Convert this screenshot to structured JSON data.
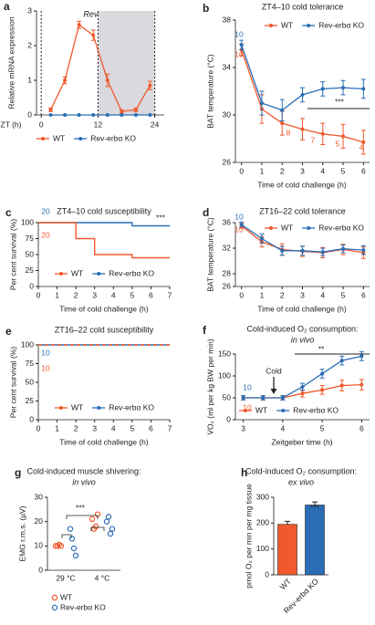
{
  "chart_data": [
    {
      "type": "line",
      "label": "a",
      "title": "Rev-erbα",
      "x_label": "ZT (h)",
      "y_label": "Relative mRNA expression",
      "xlim": [
        -1,
        26
      ],
      "xticks": [
        0,
        12,
        24
      ],
      "ylim": [
        0,
        3
      ],
      "yticks": [
        0,
        1,
        2,
        3
      ],
      "shade": [
        12,
        24
      ],
      "legend": "bottom",
      "x": [
        2,
        5,
        8,
        11,
        14,
        17,
        20,
        23
      ],
      "series": [
        {
          "name": "WT",
          "color": "#f0592b",
          "values": [
            0.15,
            1.0,
            2.6,
            2.3,
            1.0,
            0.1,
            0.15,
            0.85
          ],
          "errors": [
            0.05,
            0.1,
            0.1,
            0.15,
            0.18,
            0.05,
            0.05,
            0.12
          ]
        },
        {
          "name": "Rev-erbα KO",
          "color": "#2a6db5",
          "values": [
            0,
            0,
            0,
            0,
            0,
            0,
            0,
            0
          ],
          "errors": [
            0,
            0,
            0,
            0,
            0,
            0,
            0,
            0
          ]
        }
      ]
    },
    {
      "type": "line",
      "label": "b",
      "title": "ZT4–10 cold tolerance",
      "x_label": "Time of cold challenge (h)",
      "y_label": "BAT temperature (°C)",
      "xlim": [
        -0.3,
        6.3
      ],
      "xticks": [
        0,
        1,
        2,
        3,
        4,
        5,
        6
      ],
      "ylim": [
        26,
        38
      ],
      "yticks": [
        26,
        30,
        34,
        38
      ],
      "legend": "top",
      "x": [
        0,
        1,
        2,
        3,
        4,
        5,
        6
      ],
      "series": [
        {
          "name": "WT",
          "color": "#f0592b",
          "values": [
            35.5,
            30.5,
            29.3,
            28.8,
            28.4,
            28.2,
            27.7
          ],
          "errors": [
            0.5,
            1.2,
            1.0,
            0.9,
            0.9,
            1.0,
            1.0
          ]
        },
        {
          "name": "Rev-erbα KO",
          "color": "#2a6db5",
          "values": [
            35.9,
            31.0,
            30.4,
            31.7,
            32.2,
            32.3,
            32.2
          ],
          "errors": [
            0.4,
            1.0,
            0.9,
            0.6,
            0.6,
            0.6,
            0.8
          ]
        }
      ],
      "annotations": [
        {
          "text": "10",
          "color": "#2a6db5"
        },
        {
          "text": "10",
          "color": "#f0592b"
        },
        {
          "text": "8",
          "color": "#f0592b"
        },
        {
          "text": "7",
          "color": "#f0592b"
        },
        {
          "text": "5",
          "color": "#f0592b"
        },
        {
          "text": "4",
          "color": "#f0592b"
        },
        {
          "text": "***",
          "color": "#222222"
        }
      ]
    },
    {
      "type": "step",
      "label": "c",
      "title": "ZT4–10 cold susceptibility",
      "x_label": "Time of cold challenge (h)",
      "y_label": "Per cent survival (%)",
      "xlim": [
        0,
        7
      ],
      "xticks": [
        0,
        1,
        2,
        3,
        4,
        5,
        6,
        7
      ],
      "ylim": [
        0,
        100
      ],
      "yticks": [
        0,
        25,
        50,
        75,
        100
      ],
      "legend": "bottom",
      "series": [
        {
          "name": "WT",
          "color": "#f0592b",
          "x": [
            0,
            2,
            3,
            5,
            7
          ],
          "values": [
            100,
            75,
            50,
            45,
            45
          ]
        },
        {
          "name": "Rev-erbα KO",
          "color": "#2a6db5",
          "x": [
            0,
            5,
            7
          ],
          "values": [
            100,
            95,
            95
          ]
        }
      ],
      "annotations": [
        {
          "text": "20",
          "color": "#2a6db5"
        },
        {
          "text": "20",
          "color": "#f0592b"
        },
        {
          "text": "***",
          "color": "#222222"
        }
      ]
    },
    {
      "type": "line",
      "label": "d",
      "title": "ZT16–22 cold tolerance",
      "x_label": "Time of cold challenge (h)",
      "y_label": "BAT temperature (°C)",
      "xlim": [
        -0.3,
        6.3
      ],
      "xticks": [
        0,
        1,
        2,
        3,
        4,
        5,
        6
      ],
      "ylim": [
        26,
        36
      ],
      "yticks": [
        26,
        28,
        32,
        36
      ],
      "legend": "top",
      "x": [
        0,
        1,
        2,
        3,
        4,
        5,
        6
      ],
      "series": [
        {
          "name": "WT",
          "color": "#f0592b",
          "values": [
            35.5,
            33.0,
            31.8,
            31.5,
            31.3,
            31.8,
            31.3
          ],
          "errors": [
            0.4,
            0.8,
            0.9,
            0.8,
            0.8,
            0.8,
            0.9
          ]
        },
        {
          "name": "Rev-erbα KO",
          "color": "#2a6db5",
          "values": [
            35.7,
            33.5,
            31.6,
            31.6,
            31.4,
            31.9,
            31.7
          ],
          "errors": [
            0.4,
            0.7,
            0.7,
            0.7,
            0.6,
            0.6,
            0.7
          ]
        }
      ],
      "annotations": [
        {
          "text": "10",
          "color": "#2a6db5"
        },
        {
          "text": "10",
          "color": "#f0592b"
        }
      ]
    },
    {
      "type": "step",
      "label": "e",
      "title": "ZT16–22 cold susceptibility",
      "x_label": "Time of cold challenge (h)",
      "y_label": "Per cent survival (%)",
      "xlim": [
        0,
        7
      ],
      "xticks": [
        0,
        1,
        2,
        3,
        4,
        5,
        6,
        7
      ],
      "ylim": [
        0,
        100
      ],
      "yticks": [
        0,
        25,
        50,
        75,
        100
      ],
      "legend": "bottom",
      "series": [
        {
          "name": "WT",
          "color": "#f0592b",
          "x": [
            0,
            7
          ],
          "values": [
            100,
            100
          ]
        },
        {
          "name": "Rev-erbα KO",
          "color": "#2a6db5",
          "x": [
            0,
            7
          ],
          "values": [
            100,
            100
          ]
        }
      ],
      "annotations": [
        {
          "text": "10",
          "color": "#2a6db5"
        },
        {
          "text": "10",
          "color": "#f0592b"
        }
      ]
    },
    {
      "type": "line",
      "label": "f",
      "title": "Cold-induced O₂ consumption:",
      "subtitle": "in vivo",
      "x_label": "Zeitgeber time (h)",
      "y_label": "V̇O₂ (ml per kg BW per min)",
      "xlim": [
        2.8,
        6.2
      ],
      "xticks": [
        3,
        4,
        5,
        6
      ],
      "ylim": [
        0,
        150
      ],
      "yticks": [
        0,
        50,
        100,
        150
      ],
      "legend": "bottom",
      "x": [
        3,
        3.5,
        4,
        4.5,
        5,
        5.5,
        6
      ],
      "series": [
        {
          "name": "WT",
          "color": "#f0592b",
          "values": [
            50,
            50,
            50,
            60,
            68,
            78,
            80
          ],
          "errors": [
            5,
            5,
            5,
            8,
            10,
            12,
            12
          ]
        },
        {
          "name": "Rev-erbα KO",
          "color": "#2a6db5",
          "values": [
            50,
            50,
            50,
            75,
            105,
            135,
            145
          ],
          "errors": [
            5,
            5,
            5,
            8,
            10,
            10,
            10
          ]
        }
      ],
      "annotations": [
        {
          "text": "Cold",
          "color": "#222222"
        },
        {
          "text": "**",
          "color": "#222222"
        },
        {
          "text": "10",
          "color": "#2a6db5"
        },
        {
          "text": "10",
          "color": "#f0592b"
        }
      ]
    },
    {
      "type": "scatter",
      "label": "g",
      "title": "Cold-induced muscle shivering:",
      "subtitle": "in vivo",
      "y_label": "EMG r.m.s. (µV)",
      "categories": [
        "29 °C",
        "4 °C"
      ],
      "ylim": [
        0,
        30
      ],
      "yticks": [
        0,
        10,
        20,
        30
      ],
      "legend": "bottom",
      "series": [
        {
          "name": "WT",
          "color": "#f0592b",
          "values": [
            [
              10,
              10,
              10.5,
              10
            ],
            [
              21,
              17,
              18,
              23
            ]
          ]
        },
        {
          "name": "Rev-erbα KO",
          "color": "#2a6db5",
          "values": [
            [
              17,
              13,
              9,
              6
            ],
            [
              20,
              22,
              15,
              17
            ]
          ]
        }
      ],
      "annotations": [
        {
          "text": "***",
          "color": "#222222"
        }
      ]
    },
    {
      "type": "bar",
      "label": "h",
      "title": "Cold-induced O₂ consumption:",
      "subtitle": "ex vivo",
      "y_label": "pmol O₂ per min per mg tissue",
      "categories": [
        "WT",
        "Rev-erbα KO"
      ],
      "values": [
        195,
        270
      ],
      "errors": [
        12,
        12
      ],
      "colors": [
        "#f0592b",
        "#2a6db5"
      ],
      "ylim": [
        0,
        300
      ],
      "yticks": [
        0,
        100,
        200,
        300
      ],
      "annotations": [
        {
          "text": "***",
          "color": "#222222"
        }
      ]
    }
  ]
}
